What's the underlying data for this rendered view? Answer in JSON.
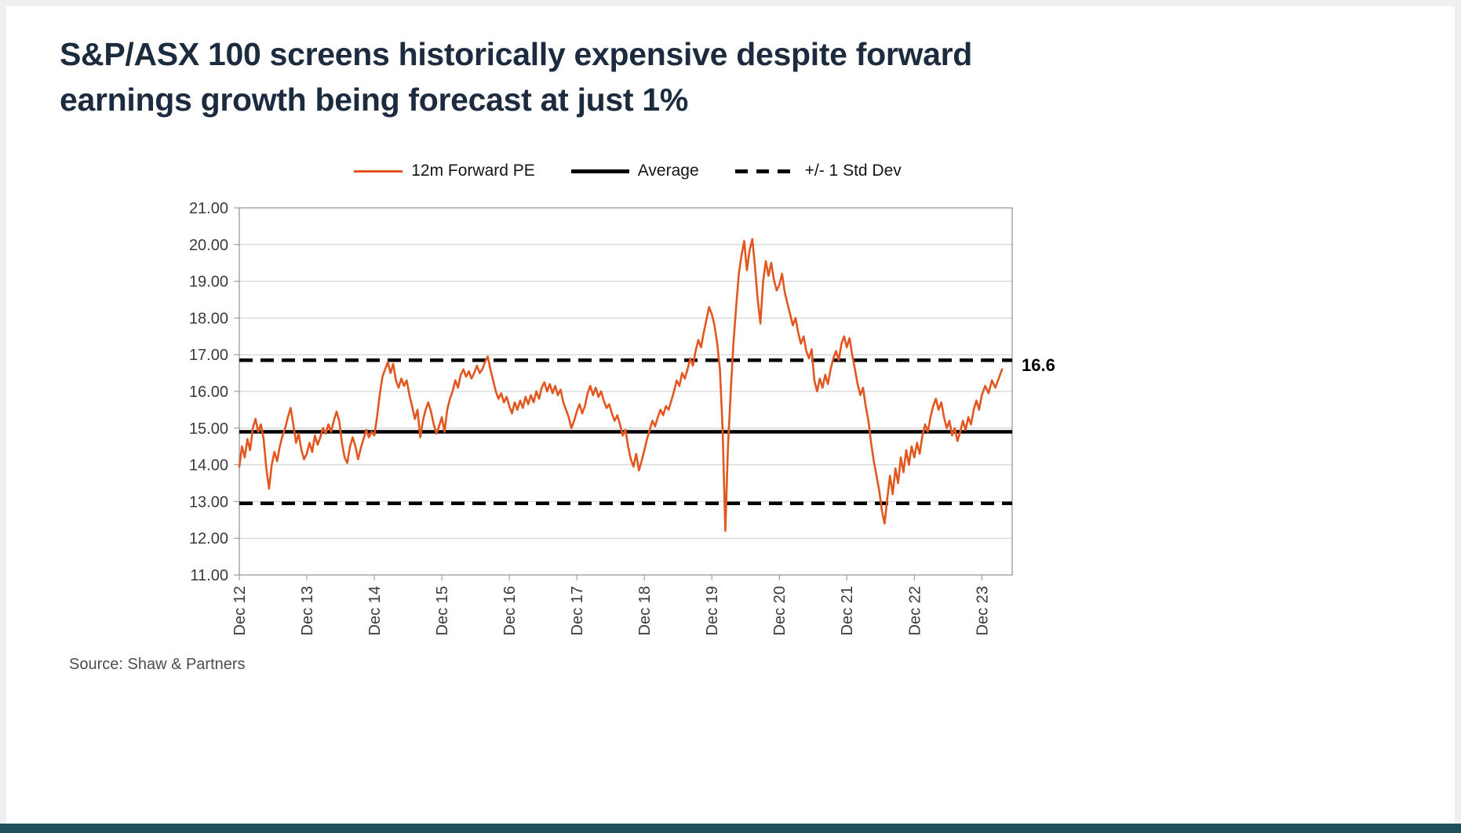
{
  "page": {
    "title_line1": "S&P/ASX 100 screens historically expensive despite forward",
    "title_line2": "earnings growth being forecast at just 1%",
    "source": "Source: Shaw & Partners",
    "accent_bar_color": "#20505b",
    "title_color": "#1c2b3e"
  },
  "legend": {
    "items": [
      {
        "label": "12m Forward PE",
        "style": "solid",
        "color": "#E2571F"
      },
      {
        "label": "Average",
        "style": "solid",
        "color": "#000000"
      },
      {
        "label": "+/- 1 Std Dev",
        "style": "dashed",
        "color": "#000000"
      }
    ]
  },
  "annotation": {
    "label": "16.6",
    "value": 16.6
  },
  "chart_data": {
    "type": "line",
    "title": "S&P/ASX 100 12m Forward PE vs long-run average and +/- 1 standard deviation bands",
    "xlabel": "",
    "ylabel": "",
    "ylim": [
      11,
      21
    ],
    "xlim": [
      0,
      11.45
    ],
    "grid": "horizontal",
    "grid_color": "#cccccc",
    "axis_color": "#8f8f8f",
    "legend_position": "top",
    "average": 14.9,
    "std_dev_upper": 16.85,
    "std_dev_lower": 12.95,
    "y_ticks": [
      {
        "value": 21,
        "label": "21.00"
      },
      {
        "value": 20,
        "label": "20.00"
      },
      {
        "value": 19,
        "label": "19.00"
      },
      {
        "value": 18,
        "label": "18.00"
      },
      {
        "value": 17,
        "label": "17.00"
      },
      {
        "value": 16,
        "label": "16.00"
      },
      {
        "value": 15,
        "label": "15.00"
      },
      {
        "value": 14,
        "label": "14.00"
      },
      {
        "value": 13,
        "label": "13.00"
      },
      {
        "value": 12,
        "label": "12.00"
      },
      {
        "value": 11,
        "label": "11.00"
      }
    ],
    "x_ticks": [
      {
        "value": 0,
        "label": "Dec 12"
      },
      {
        "value": 1,
        "label": "Dec 13"
      },
      {
        "value": 2,
        "label": "Dec 14"
      },
      {
        "value": 3,
        "label": "Dec 15"
      },
      {
        "value": 4,
        "label": "Dec 16"
      },
      {
        "value": 5,
        "label": "Dec 17"
      },
      {
        "value": 6,
        "label": "Dec 18"
      },
      {
        "value": 7,
        "label": "Dec 19"
      },
      {
        "value": 8,
        "label": "Dec 20"
      },
      {
        "value": 9,
        "label": "Dec 21"
      },
      {
        "value": 10,
        "label": "Dec 22"
      },
      {
        "value": 11,
        "label": "Dec 23"
      }
    ],
    "series": [
      {
        "name": "12m Forward PE",
        "color": "#E2571F",
        "points": [
          [
            0.0,
            13.95
          ],
          [
            0.04,
            14.5
          ],
          [
            0.08,
            14.2
          ],
          [
            0.12,
            14.7
          ],
          [
            0.16,
            14.4
          ],
          [
            0.2,
            15.0
          ],
          [
            0.24,
            15.25
          ],
          [
            0.28,
            14.9
          ],
          [
            0.32,
            15.1
          ],
          [
            0.36,
            14.7
          ],
          [
            0.4,
            13.9
          ],
          [
            0.44,
            13.35
          ],
          [
            0.48,
            14.0
          ],
          [
            0.52,
            14.35
          ],
          [
            0.56,
            14.1
          ],
          [
            0.6,
            14.5
          ],
          [
            0.64,
            14.8
          ],
          [
            0.68,
            15.0
          ],
          [
            0.72,
            15.3
          ],
          [
            0.76,
            15.55
          ],
          [
            0.8,
            15.1
          ],
          [
            0.84,
            14.6
          ],
          [
            0.88,
            14.85
          ],
          [
            0.92,
            14.4
          ],
          [
            0.96,
            14.15
          ],
          [
            1.0,
            14.3
          ],
          [
            1.04,
            14.6
          ],
          [
            1.08,
            14.35
          ],
          [
            1.12,
            14.8
          ],
          [
            1.16,
            14.55
          ],
          [
            1.2,
            14.75
          ],
          [
            1.24,
            15.0
          ],
          [
            1.28,
            14.85
          ],
          [
            1.32,
            15.1
          ],
          [
            1.36,
            14.9
          ],
          [
            1.4,
            15.2
          ],
          [
            1.44,
            15.45
          ],
          [
            1.48,
            15.2
          ],
          [
            1.52,
            14.6
          ],
          [
            1.56,
            14.2
          ],
          [
            1.6,
            14.05
          ],
          [
            1.64,
            14.5
          ],
          [
            1.68,
            14.75
          ],
          [
            1.72,
            14.5
          ],
          [
            1.76,
            14.15
          ],
          [
            1.8,
            14.45
          ],
          [
            1.84,
            14.7
          ],
          [
            1.88,
            14.95
          ],
          [
            1.92,
            14.75
          ],
          [
            1.96,
            14.9
          ],
          [
            2.0,
            14.8
          ],
          [
            2.04,
            15.3
          ],
          [
            2.08,
            15.9
          ],
          [
            2.12,
            16.4
          ],
          [
            2.16,
            16.6
          ],
          [
            2.2,
            16.8
          ],
          [
            2.24,
            16.5
          ],
          [
            2.28,
            16.75
          ],
          [
            2.32,
            16.3
          ],
          [
            2.36,
            16.1
          ],
          [
            2.4,
            16.35
          ],
          [
            2.44,
            16.15
          ],
          [
            2.48,
            16.3
          ],
          [
            2.52,
            15.9
          ],
          [
            2.56,
            15.6
          ],
          [
            2.6,
            15.25
          ],
          [
            2.64,
            15.5
          ],
          [
            2.68,
            14.75
          ],
          [
            2.72,
            15.2
          ],
          [
            2.76,
            15.5
          ],
          [
            2.8,
            15.7
          ],
          [
            2.84,
            15.45
          ],
          [
            2.88,
            15.1
          ],
          [
            2.92,
            14.85
          ],
          [
            2.96,
            15.05
          ],
          [
            3.0,
            15.3
          ],
          [
            3.04,
            14.9
          ],
          [
            3.08,
            15.5
          ],
          [
            3.12,
            15.8
          ],
          [
            3.16,
            16.0
          ],
          [
            3.2,
            16.3
          ],
          [
            3.24,
            16.1
          ],
          [
            3.28,
            16.45
          ],
          [
            3.32,
            16.6
          ],
          [
            3.36,
            16.4
          ],
          [
            3.4,
            16.55
          ],
          [
            3.44,
            16.35
          ],
          [
            3.48,
            16.5
          ],
          [
            3.52,
            16.7
          ],
          [
            3.56,
            16.5
          ],
          [
            3.6,
            16.6
          ],
          [
            3.64,
            16.8
          ],
          [
            3.68,
            16.95
          ],
          [
            3.72,
            16.6
          ],
          [
            3.76,
            16.3
          ],
          [
            3.8,
            16.0
          ],
          [
            3.84,
            15.8
          ],
          [
            3.88,
            15.95
          ],
          [
            3.92,
            15.7
          ],
          [
            3.96,
            15.85
          ],
          [
            4.0,
            15.6
          ],
          [
            4.04,
            15.4
          ],
          [
            4.08,
            15.7
          ],
          [
            4.12,
            15.5
          ],
          [
            4.16,
            15.75
          ],
          [
            4.2,
            15.55
          ],
          [
            4.24,
            15.85
          ],
          [
            4.28,
            15.65
          ],
          [
            4.32,
            15.9
          ],
          [
            4.36,
            15.7
          ],
          [
            4.4,
            16.0
          ],
          [
            4.44,
            15.8
          ],
          [
            4.48,
            16.1
          ],
          [
            4.52,
            16.25
          ],
          [
            4.56,
            16.0
          ],
          [
            4.6,
            16.2
          ],
          [
            4.64,
            15.95
          ],
          [
            4.68,
            16.15
          ],
          [
            4.72,
            15.9
          ],
          [
            4.76,
            16.05
          ],
          [
            4.8,
            15.7
          ],
          [
            4.84,
            15.5
          ],
          [
            4.88,
            15.3
          ],
          [
            4.92,
            15.0
          ],
          [
            4.96,
            15.2
          ],
          [
            5.0,
            15.45
          ],
          [
            5.04,
            15.65
          ],
          [
            5.08,
            15.4
          ],
          [
            5.12,
            15.6
          ],
          [
            5.16,
            15.95
          ],
          [
            5.2,
            16.15
          ],
          [
            5.24,
            15.9
          ],
          [
            5.28,
            16.1
          ],
          [
            5.32,
            15.85
          ],
          [
            5.36,
            16.0
          ],
          [
            5.4,
            15.75
          ],
          [
            5.44,
            15.55
          ],
          [
            5.48,
            15.65
          ],
          [
            5.52,
            15.4
          ],
          [
            5.56,
            15.2
          ],
          [
            5.6,
            15.35
          ],
          [
            5.64,
            15.1
          ],
          [
            5.68,
            14.8
          ],
          [
            5.72,
            14.95
          ],
          [
            5.76,
            14.5
          ],
          [
            5.8,
            14.15
          ],
          [
            5.84,
            13.95
          ],
          [
            5.88,
            14.3
          ],
          [
            5.92,
            13.85
          ],
          [
            5.96,
            14.1
          ],
          [
            6.0,
            14.4
          ],
          [
            6.04,
            14.7
          ],
          [
            6.08,
            14.95
          ],
          [
            6.12,
            15.2
          ],
          [
            6.16,
            15.05
          ],
          [
            6.2,
            15.3
          ],
          [
            6.24,
            15.5
          ],
          [
            6.28,
            15.35
          ],
          [
            6.32,
            15.6
          ],
          [
            6.36,
            15.5
          ],
          [
            6.4,
            15.75
          ],
          [
            6.44,
            16.0
          ],
          [
            6.48,
            16.3
          ],
          [
            6.52,
            16.15
          ],
          [
            6.56,
            16.5
          ],
          [
            6.6,
            16.35
          ],
          [
            6.64,
            16.6
          ],
          [
            6.68,
            16.9
          ],
          [
            6.72,
            16.7
          ],
          [
            6.76,
            17.1
          ],
          [
            6.8,
            17.4
          ],
          [
            6.84,
            17.2
          ],
          [
            6.88,
            17.6
          ],
          [
            6.92,
            17.95
          ],
          [
            6.96,
            18.3
          ],
          [
            7.0,
            18.1
          ],
          [
            7.04,
            17.8
          ],
          [
            7.08,
            17.3
          ],
          [
            7.12,
            16.6
          ],
          [
            7.16,
            15.0
          ],
          [
            7.2,
            12.2
          ],
          [
            7.24,
            14.5
          ],
          [
            7.28,
            16.0
          ],
          [
            7.32,
            17.3
          ],
          [
            7.36,
            18.3
          ],
          [
            7.4,
            19.2
          ],
          [
            7.44,
            19.7
          ],
          [
            7.48,
            20.1
          ],
          [
            7.52,
            19.3
          ],
          [
            7.56,
            19.85
          ],
          [
            7.6,
            20.15
          ],
          [
            7.64,
            19.4
          ],
          [
            7.68,
            18.5
          ],
          [
            7.72,
            17.85
          ],
          [
            7.76,
            19.0
          ],
          [
            7.8,
            19.55
          ],
          [
            7.84,
            19.15
          ],
          [
            7.88,
            19.5
          ],
          [
            7.92,
            19.05
          ],
          [
            7.96,
            18.75
          ],
          [
            8.0,
            18.9
          ],
          [
            8.04,
            19.2
          ],
          [
            8.08,
            18.7
          ],
          [
            8.12,
            18.4
          ],
          [
            8.16,
            18.1
          ],
          [
            8.2,
            17.8
          ],
          [
            8.24,
            18.0
          ],
          [
            8.28,
            17.6
          ],
          [
            8.32,
            17.3
          ],
          [
            8.36,
            17.5
          ],
          [
            8.4,
            17.1
          ],
          [
            8.44,
            16.9
          ],
          [
            8.48,
            17.15
          ],
          [
            8.52,
            16.3
          ],
          [
            8.56,
            16.0
          ],
          [
            8.6,
            16.35
          ],
          [
            8.64,
            16.1
          ],
          [
            8.68,
            16.45
          ],
          [
            8.72,
            16.2
          ],
          [
            8.76,
            16.6
          ],
          [
            8.8,
            16.9
          ],
          [
            8.84,
            17.1
          ],
          [
            8.88,
            16.85
          ],
          [
            8.92,
            17.3
          ],
          [
            8.96,
            17.5
          ],
          [
            9.0,
            17.2
          ],
          [
            9.04,
            17.45
          ],
          [
            9.08,
            17.0
          ],
          [
            9.12,
            16.6
          ],
          [
            9.16,
            16.2
          ],
          [
            9.2,
            15.9
          ],
          [
            9.24,
            16.1
          ],
          [
            9.28,
            15.6
          ],
          [
            9.32,
            15.2
          ],
          [
            9.36,
            14.6
          ],
          [
            9.4,
            14.1
          ],
          [
            9.44,
            13.7
          ],
          [
            9.48,
            13.3
          ],
          [
            9.52,
            12.75
          ],
          [
            9.56,
            12.4
          ],
          [
            9.6,
            13.1
          ],
          [
            9.64,
            13.7
          ],
          [
            9.68,
            13.2
          ],
          [
            9.72,
            13.9
          ],
          [
            9.76,
            13.5
          ],
          [
            9.8,
            14.2
          ],
          [
            9.84,
            13.8
          ],
          [
            9.88,
            14.4
          ],
          [
            9.92,
            14.0
          ],
          [
            9.96,
            14.5
          ],
          [
            10.0,
            14.2
          ],
          [
            10.04,
            14.6
          ],
          [
            10.08,
            14.3
          ],
          [
            10.12,
            14.8
          ],
          [
            10.16,
            15.1
          ],
          [
            10.2,
            14.9
          ],
          [
            10.24,
            15.3
          ],
          [
            10.28,
            15.6
          ],
          [
            10.32,
            15.8
          ],
          [
            10.36,
            15.5
          ],
          [
            10.4,
            15.7
          ],
          [
            10.44,
            15.3
          ],
          [
            10.48,
            15.0
          ],
          [
            10.52,
            15.2
          ],
          [
            10.56,
            14.8
          ],
          [
            10.6,
            15.0
          ],
          [
            10.64,
            14.65
          ],
          [
            10.68,
            14.9
          ],
          [
            10.72,
            15.2
          ],
          [
            10.76,
            14.95
          ],
          [
            10.8,
            15.3
          ],
          [
            10.84,
            15.1
          ],
          [
            10.88,
            15.5
          ],
          [
            10.92,
            15.75
          ],
          [
            10.96,
            15.5
          ],
          [
            11.0,
            15.9
          ],
          [
            11.05,
            16.15
          ],
          [
            11.1,
            15.95
          ],
          [
            11.15,
            16.3
          ],
          [
            11.2,
            16.1
          ],
          [
            11.25,
            16.35
          ],
          [
            11.3,
            16.6
          ]
        ]
      }
    ]
  }
}
